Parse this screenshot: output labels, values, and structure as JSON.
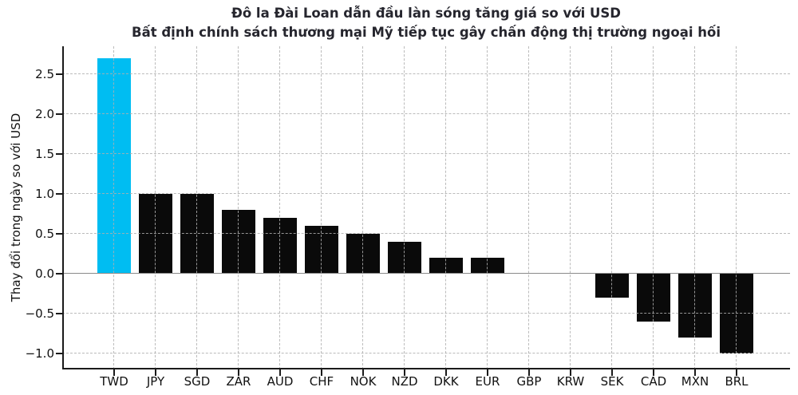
{
  "chart_data": {
    "type": "bar",
    "title": "Đô la Đài Loan dẫn đầu làn sóng tăng giá so với USD",
    "subtitle": "Bất định chính sách thương mại Mỹ tiếp tục gây chấn động thị trường ngoại hối",
    "ylabel": "Thay đổi trong ngày so với USD",
    "xlabel": "",
    "categories": [
      "TWD",
      "JPY",
      "SGD",
      "ZAR",
      "AUD",
      "CHF",
      "NOK",
      "NZD",
      "DKK",
      "EUR",
      "GBP",
      "KRW",
      "SEK",
      "CAD",
      "MXN",
      "BRL"
    ],
    "values": [
      2.7,
      1.0,
      1.0,
      0.8,
      0.7,
      0.6,
      0.5,
      0.4,
      0.2,
      0.2,
      0.0,
      0.0,
      -0.3,
      -0.6,
      -0.8,
      -1.0
    ],
    "yticks": [
      2.5,
      2.0,
      1.5,
      1.0,
      0.5,
      0.0,
      -0.5,
      -1.0
    ],
    "ylim": [
      -1.2,
      2.85
    ],
    "grid": "both, dashed, drawn above bars",
    "legend_position": "none",
    "highlight_category": "TWD",
    "highlight_color": "#00bdf2",
    "bar_color": "#0a0a0a",
    "zero_line_color": "#8a8a8a",
    "grid_color": "#bfbfbf",
    "spine_color": "#1a1a1a",
    "title_color": "#26262e"
  }
}
